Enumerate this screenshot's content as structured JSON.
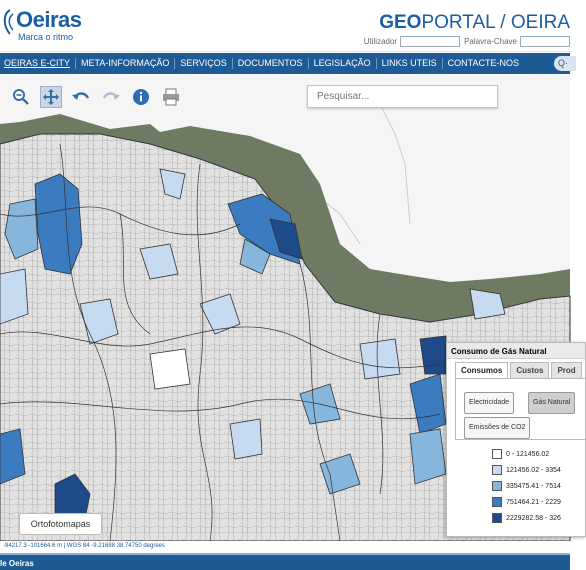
{
  "header": {
    "logo_name": "Oeiras",
    "logo_tagline": "Marca o ritmo",
    "title_bold": "GEO",
    "title_rest": "PORTAL / OEIRA",
    "user_label": "Utilizador",
    "password_label": "Palavra-Chave"
  },
  "nav": {
    "items": [
      {
        "label": "OEIRAS E-CITY",
        "underline": true
      },
      {
        "label": "META-INFORMAÇÃO"
      },
      {
        "label": "SERVIÇOS"
      },
      {
        "label": "DOCUMENTOS"
      },
      {
        "label": "LEGISLAÇÃO"
      },
      {
        "label": "LINKS UTEIS"
      },
      {
        "label": "CONTACTE-NOS"
      }
    ],
    "search_stub": "Q·"
  },
  "toolbar": {
    "tools": [
      "zoom-out-icon",
      "pan-icon",
      "undo-icon",
      "redo-icon",
      "info-icon",
      "print-icon"
    ],
    "active_tool": "pan-icon"
  },
  "search": {
    "placeholder": "Pesquisar..."
  },
  "map": {
    "base_layer_button": "Ortofotomapas",
    "choropleth_colors": [
      "#ffffff",
      "#c6dbef",
      "#86b6dc",
      "#3b7bbf",
      "#1f4a8a"
    ]
  },
  "panel": {
    "title": "Consumo de Gás Natural",
    "tabs": [
      "Consumos",
      "Custos",
      "Prod"
    ],
    "active_tab": "Consumos",
    "buttons": [
      "Electricidade",
      "Gás Natural",
      "Emissões de CO2"
    ],
    "active_button": "Gás Natural",
    "legend": [
      {
        "label": "0 - 121456.02",
        "color": "#ffffff"
      },
      {
        "label": "121456.02 - 3354",
        "color": "#c6dbef"
      },
      {
        "label": "335475.41 - 7514",
        "color": "#86b6dc"
      },
      {
        "label": "751464.21 - 2229",
        "color": "#3b7bbf"
      },
      {
        "label": "2229282.58 - 326",
        "color": "#1f4a8a"
      }
    ]
  },
  "status": {
    "coords": "-94217.3  -101664.6 m  |  WGS 84    -9.21688  38.74750 degrees"
  },
  "footer": {
    "text": "le Oeiras"
  }
}
